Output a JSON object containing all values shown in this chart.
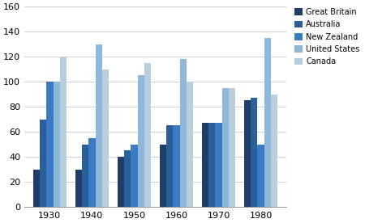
{
  "years": [
    1930,
    1940,
    1950,
    1960,
    1970,
    1980
  ],
  "series": {
    "Great Britain": [
      30,
      30,
      40,
      50,
      67,
      85
    ],
    "Australia": [
      70,
      50,
      45,
      65,
      67,
      87
    ],
    "New Zealand": [
      100,
      55,
      50,
      65,
      67,
      50
    ],
    "United States": [
      100,
      130,
      105,
      118,
      95,
      135
    ],
    "Canada": [
      120,
      110,
      115,
      100,
      95,
      90
    ]
  },
  "colors": {
    "Great Britain": "#1F3D6B",
    "Australia": "#2A6099",
    "New Zealand": "#3A7CC4",
    "United States": "#8FB8D8",
    "Canada": "#B8CFE0"
  },
  "ylim": [
    0,
    160
  ],
  "yticks": [
    0,
    20,
    40,
    60,
    80,
    100,
    120,
    140,
    160
  ],
  "legend_order": [
    "Great Britain",
    "Australia",
    "New Zealand",
    "United States",
    "Canada"
  ],
  "background_color": "#FFFFFF",
  "grid_color": "#D0D0D0",
  "bar_width": 0.16,
  "figsize": [
    4.5,
    2.76
  ],
  "dpi": 100
}
